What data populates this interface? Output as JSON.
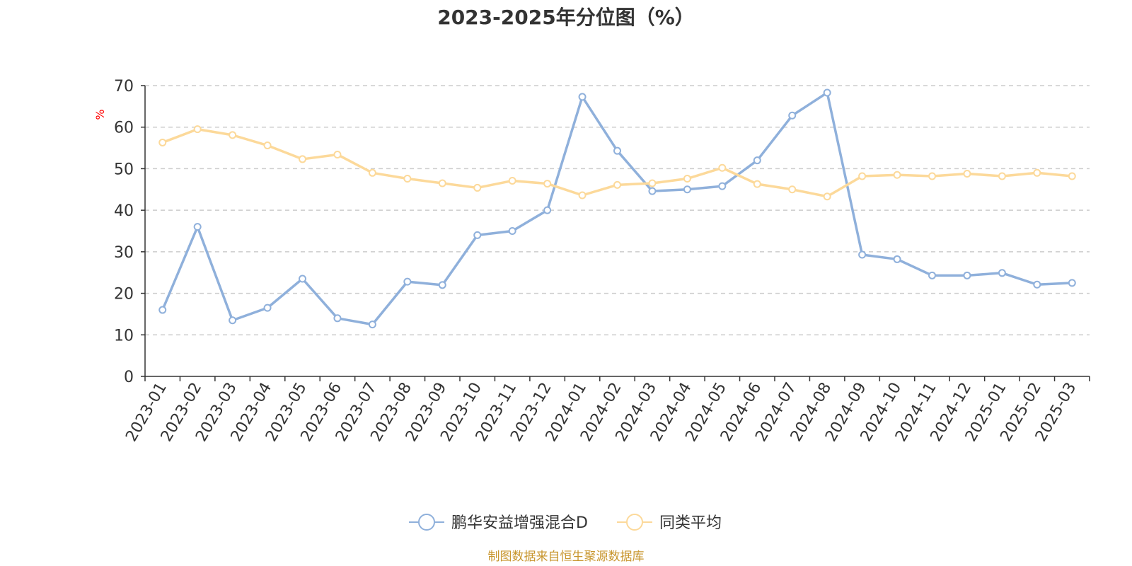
{
  "chart_data": {
    "type": "line",
    "title": "2023-2025年分位图（%）",
    "ylabel": "%",
    "ylim": [
      0,
      70
    ],
    "yticks": [
      0,
      10,
      20,
      30,
      40,
      50,
      60,
      70
    ],
    "grid": true,
    "legend_position": "bottom",
    "categories": [
      "2023-01",
      "2023-02",
      "2023-03",
      "2023-04",
      "2023-05",
      "2023-06",
      "2023-07",
      "2023-08",
      "2023-09",
      "2023-10",
      "2023-11",
      "2023-12",
      "2024-01",
      "2024-02",
      "2024-03",
      "2024-04",
      "2024-05",
      "2024-06",
      "2024-07",
      "2024-08",
      "2024-09",
      "2024-10",
      "2024-11",
      "2024-12",
      "2025-01",
      "2025-02",
      "2025-03"
    ],
    "series": [
      {
        "name": "鹏华安益增强混合D",
        "color": "#8fb0db",
        "values": [
          16.0,
          36.0,
          13.5,
          16.5,
          23.5,
          14.0,
          12.5,
          22.8,
          22.0,
          34.0,
          35.0,
          40.0,
          67.3,
          54.3,
          44.6,
          45.0,
          45.8,
          52.0,
          62.8,
          68.3,
          29.3,
          28.2,
          24.3,
          24.3,
          24.9,
          22.1,
          22.5
        ]
      },
      {
        "name": "同类平均",
        "color": "#fcd99a",
        "values": [
          56.3,
          59.5,
          58.1,
          55.6,
          52.3,
          53.4,
          49.0,
          47.6,
          46.5,
          45.4,
          47.1,
          46.4,
          43.6,
          46.1,
          46.5,
          47.6,
          50.2,
          46.3,
          45.0,
          43.3,
          48.2,
          48.5,
          48.2,
          48.8,
          48.2,
          49.0,
          48.2
        ]
      }
    ]
  },
  "source": "制图数据来自恒生聚源数据库",
  "colors": {
    "axis": "#333333",
    "grid": "#cccccc",
    "ylabel": "#ff0000",
    "source": "#c8962e"
  }
}
